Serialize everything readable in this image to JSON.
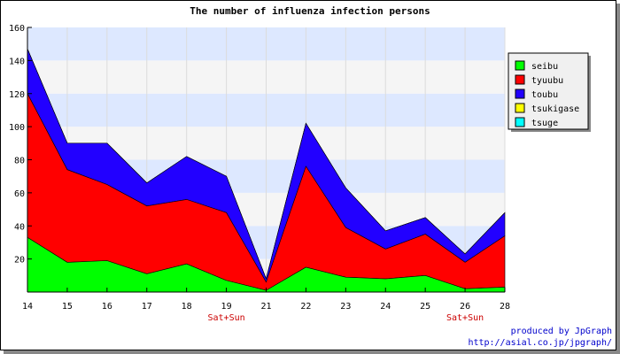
{
  "chart_data": {
    "type": "area",
    "stacked": true,
    "title": "The number of influenza infection persons",
    "xlabel": "",
    "ylabel": "",
    "x": [
      14,
      15,
      16,
      17,
      18,
      19,
      21,
      22,
      23,
      24,
      25,
      26,
      28
    ],
    "x_tick_labels": [
      "14",
      "15",
      "16",
      "17",
      "18",
      "19",
      "21",
      "22",
      "23",
      "24",
      "25",
      "26",
      "28"
    ],
    "weekend_labels": [
      {
        "x": 19,
        "text": "Sat+Sun"
      },
      {
        "x": 26,
        "text": "Sat+Sun"
      }
    ],
    "ylim": [
      0,
      160
    ],
    "y_ticks": [
      20,
      40,
      60,
      80,
      100,
      120,
      140,
      160
    ],
    "grid": "horizontal bands",
    "legend_position": "right",
    "series": [
      {
        "name": "seibu",
        "color": "#00ff00",
        "values": [
          33,
          18,
          19,
          11,
          17,
          7,
          1,
          15,
          9,
          8,
          10,
          2,
          3
        ]
      },
      {
        "name": "tyuubu",
        "color": "#ff0000",
        "values": [
          87,
          56,
          46,
          41,
          39,
          41,
          5,
          61,
          30,
          18,
          25,
          16,
          31
        ]
      },
      {
        "name": "toubu",
        "color": "#2200ff",
        "values": [
          27,
          16,
          25,
          14,
          26,
          22,
          2,
          26,
          24,
          11,
          10,
          5,
          14
        ]
      },
      {
        "name": "tsukigase",
        "color": "#ffff00",
        "values": [
          0,
          0,
          0,
          0,
          0,
          0,
          0,
          0,
          0,
          0,
          0,
          0,
          0
        ]
      },
      {
        "name": "tsuge",
        "color": "#00ffff",
        "values": [
          0,
          0,
          0,
          0,
          0,
          0,
          0,
          0,
          0,
          0,
          0,
          0,
          0
        ]
      }
    ]
  },
  "credit": {
    "line1": "produced by JpGraph",
    "line2": "http://asial.co.jp/jpgraph/"
  }
}
